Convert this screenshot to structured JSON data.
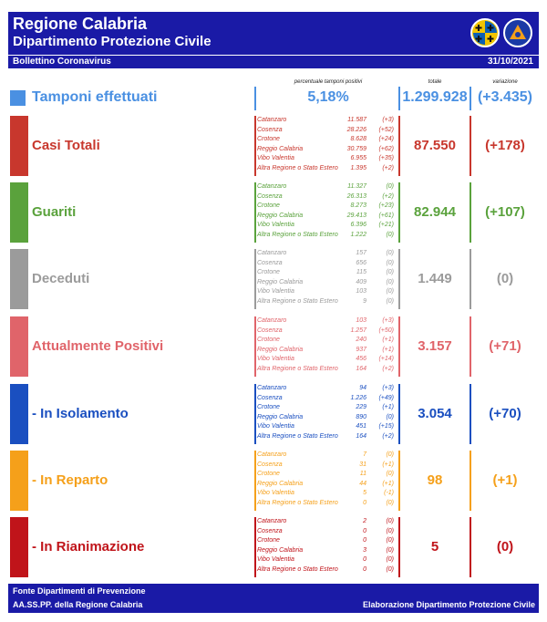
{
  "header": {
    "title": "Regione Calabria",
    "subtitle": "Dipartimento Protezione Civile",
    "bollettino": "Bollettino Coronavirus",
    "date": "31/10/2021"
  },
  "columns": {
    "percent": "percentuale tamponi positivi",
    "total": "totale",
    "variation": "variazione"
  },
  "tamponi": {
    "label": "Tamponi effettuati",
    "percent": "5,18%",
    "total": "1.299.928",
    "variation": "(+3.435)",
    "color": "#4a90e2"
  },
  "sections": [
    {
      "label": "Casi Totali",
      "color": "#c8372d",
      "total": "87.550",
      "variation": "(+178)",
      "rows": [
        {
          "name": "Catanzaro",
          "value": "11.587",
          "delta": "(+3)"
        },
        {
          "name": "Cosenza",
          "value": "28.226",
          "delta": "(+52)"
        },
        {
          "name": "Crotone",
          "value": "8.628",
          "delta": "(+24)"
        },
        {
          "name": "Reggio Calabria",
          "value": "30.759",
          "delta": "(+62)"
        },
        {
          "name": "Vibo Valentia",
          "value": "6.955",
          "delta": "(+35)"
        },
        {
          "name": "Altra Regione o Stato Estero",
          "value": "1.395",
          "delta": "(+2)"
        }
      ]
    },
    {
      "label": "Guariti",
      "color": "#5aa23c",
      "total": "82.944",
      "variation": "(+107)",
      "rows": [
        {
          "name": "Catanzaro",
          "value": "11.327",
          "delta": "(0)"
        },
        {
          "name": "Cosenza",
          "value": "26.313",
          "delta": "(+2)"
        },
        {
          "name": "Crotone",
          "value": "8.273",
          "delta": "(+23)"
        },
        {
          "name": "Reggio Calabria",
          "value": "29.413",
          "delta": "(+61)"
        },
        {
          "name": "Vibo Valentia",
          "value": "6.396",
          "delta": "(+21)"
        },
        {
          "name": "Altra Regione o Stato Estero",
          "value": "1.222",
          "delta": "(0)"
        }
      ]
    },
    {
      "label": "Deceduti",
      "color": "#9b9b9b",
      "total": "1.449",
      "variation": "(0)",
      "rows": [
        {
          "name": "Catanzaro",
          "value": "157",
          "delta": "(0)"
        },
        {
          "name": "Cosenza",
          "value": "656",
          "delta": "(0)"
        },
        {
          "name": "Crotone",
          "value": "115",
          "delta": "(0)"
        },
        {
          "name": "Reggio Calabria",
          "value": "409",
          "delta": "(0)"
        },
        {
          "name": "Vibo Valentia",
          "value": "103",
          "delta": "(0)"
        },
        {
          "name": "Altra Regione o Stato Estero",
          "value": "9",
          "delta": "(0)"
        }
      ]
    },
    {
      "label": "Attualmente Positivi",
      "color": "#e0646a",
      "total": "3.157",
      "variation": "(+71)",
      "rows": [
        {
          "name": "Catanzaro",
          "value": "103",
          "delta": "(+3)"
        },
        {
          "name": "Cosenza",
          "value": "1.257",
          "delta": "(+50)"
        },
        {
          "name": "Crotone",
          "value": "240",
          "delta": "(+1)"
        },
        {
          "name": "Reggio Calabria",
          "value": "937",
          "delta": "(+1)"
        },
        {
          "name": "Vibo Valentia",
          "value": "456",
          "delta": "(+14)"
        },
        {
          "name": "Altra Regione o Stato Estero",
          "value": "164",
          "delta": "(+2)"
        }
      ]
    },
    {
      "label": " - In Isolamento",
      "color": "#1a4fc0",
      "total": "3.054",
      "variation": "(+70)",
      "rows": [
        {
          "name": "Catanzaro",
          "value": "94",
          "delta": "(+3)"
        },
        {
          "name": "Cosenza",
          "value": "1.226",
          "delta": "(+49)"
        },
        {
          "name": "Crotone",
          "value": "229",
          "delta": "(+1)"
        },
        {
          "name": "Reggio Calabria",
          "value": "890",
          "delta": "(0)"
        },
        {
          "name": "Vibo Valentia",
          "value": "451",
          "delta": "(+15)"
        },
        {
          "name": "Altra Regione o Stato Estero",
          "value": "164",
          "delta": "(+2)"
        }
      ]
    },
    {
      "label": " - In Reparto",
      "color": "#f5a01a",
      "total": "98",
      "variation": "(+1)",
      "rows": [
        {
          "name": "Catanzaro",
          "value": "7",
          "delta": "(0)"
        },
        {
          "name": "Cosenza",
          "value": "31",
          "delta": "(+1)"
        },
        {
          "name": "Crotone",
          "value": "11",
          "delta": "(0)"
        },
        {
          "name": "Reggio Calabria",
          "value": "44",
          "delta": "(+1)"
        },
        {
          "name": "Vibo Valentia",
          "value": "5",
          "delta": "(-1)"
        },
        {
          "name": "Altra Regione o Stato Estero",
          "value": "0",
          "delta": "(0)"
        }
      ]
    },
    {
      "label": " - In Rianimazione",
      "color": "#c0141a",
      "total": "5",
      "variation": "(0)",
      "rows": [
        {
          "name": "Catanzaro",
          "value": "2",
          "delta": "(0)"
        },
        {
          "name": "Cosenza",
          "value": "0",
          "delta": "(0)"
        },
        {
          "name": "Crotone",
          "value": "0",
          "delta": "(0)"
        },
        {
          "name": "Reggio Calabria",
          "value": "3",
          "delta": "(0)"
        },
        {
          "name": "Vibo Valentia",
          "value": "0",
          "delta": "(0)"
        },
        {
          "name": "Altra Regione o Stato Estero",
          "value": "0",
          "delta": "(0)"
        }
      ]
    }
  ],
  "footer": {
    "line1": "Fonte Dipartimenti di Prevenzione",
    "line2": "AA.SS.PP.  della Regione Calabria",
    "right": "Elaborazione Dipartimento Protezione Civile"
  }
}
